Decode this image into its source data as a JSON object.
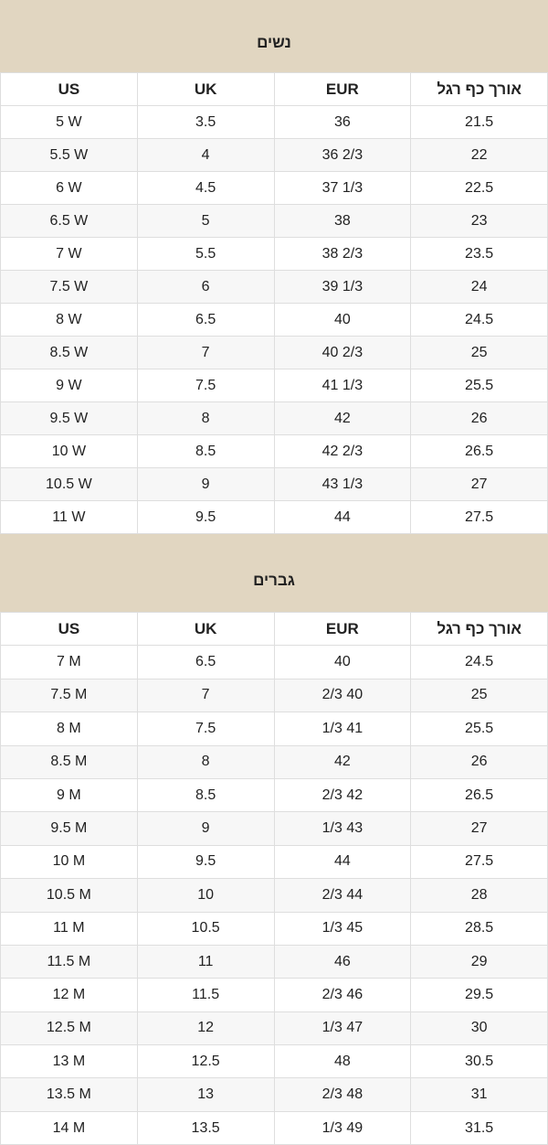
{
  "sections": [
    {
      "title": "נשים",
      "columns": [
        "אורך כף רגל",
        "EUR",
        "UK",
        "US"
      ],
      "rows": [
        [
          "21.5",
          "36",
          "3.5",
          "5 W"
        ],
        [
          "22",
          "36 2/3",
          "4",
          "5.5 W"
        ],
        [
          "22.5",
          "37 1/3",
          "4.5",
          "6 W"
        ],
        [
          "23",
          "38",
          "5",
          "6.5 W"
        ],
        [
          "23.5",
          "38 2/3",
          "5.5",
          "7 W"
        ],
        [
          "24",
          "39 1/3",
          "6",
          "7.5 W"
        ],
        [
          "24.5",
          "40",
          "6.5",
          "8 W"
        ],
        [
          "25",
          "40 2/3",
          "7",
          "8.5 W"
        ],
        [
          "25.5",
          "41 1/3",
          "7.5",
          "9 W"
        ],
        [
          "26",
          "42",
          "8",
          "9.5 W"
        ],
        [
          "26.5",
          "42 2/3",
          "8.5",
          "10 W"
        ],
        [
          "27",
          "43 1/3",
          "9",
          "10.5 W"
        ],
        [
          "27.5",
          "44",
          "9.5",
          "11 W"
        ]
      ]
    },
    {
      "title": "גברים",
      "columns": [
        "אורך כף רגל",
        "EUR",
        "UK",
        "US"
      ],
      "rows": [
        [
          "24.5",
          "40",
          "6.5",
          "7 M"
        ],
        [
          "25",
          "2/3 40",
          "7",
          "7.5 M"
        ],
        [
          "25.5",
          "1/3 41",
          "7.5",
          "8 M"
        ],
        [
          "26",
          "42",
          "8",
          "8.5 M"
        ],
        [
          "26.5",
          "2/3 42",
          "8.5",
          "9 M"
        ],
        [
          "27",
          "1/3 43",
          "9",
          "9.5 M"
        ],
        [
          "27.5",
          "44",
          "9.5",
          "10 M"
        ],
        [
          "28",
          "2/3 44",
          "10",
          "10.5 M"
        ],
        [
          "28.5",
          "1/3 45",
          "10.5",
          "11 M"
        ],
        [
          "29",
          "46",
          "11",
          "11.5 M"
        ],
        [
          "29.5",
          "2/3 46",
          "11.5",
          "12 M"
        ],
        [
          "30",
          "1/3 47",
          "12",
          "12.5 M"
        ],
        [
          "30.5",
          "48",
          "12.5",
          "13 M"
        ],
        [
          "31",
          "2/3 48",
          "13",
          "13.5 M"
        ],
        [
          "31.5",
          "1/3 49",
          "13.5",
          "14 M"
        ]
      ]
    }
  ]
}
